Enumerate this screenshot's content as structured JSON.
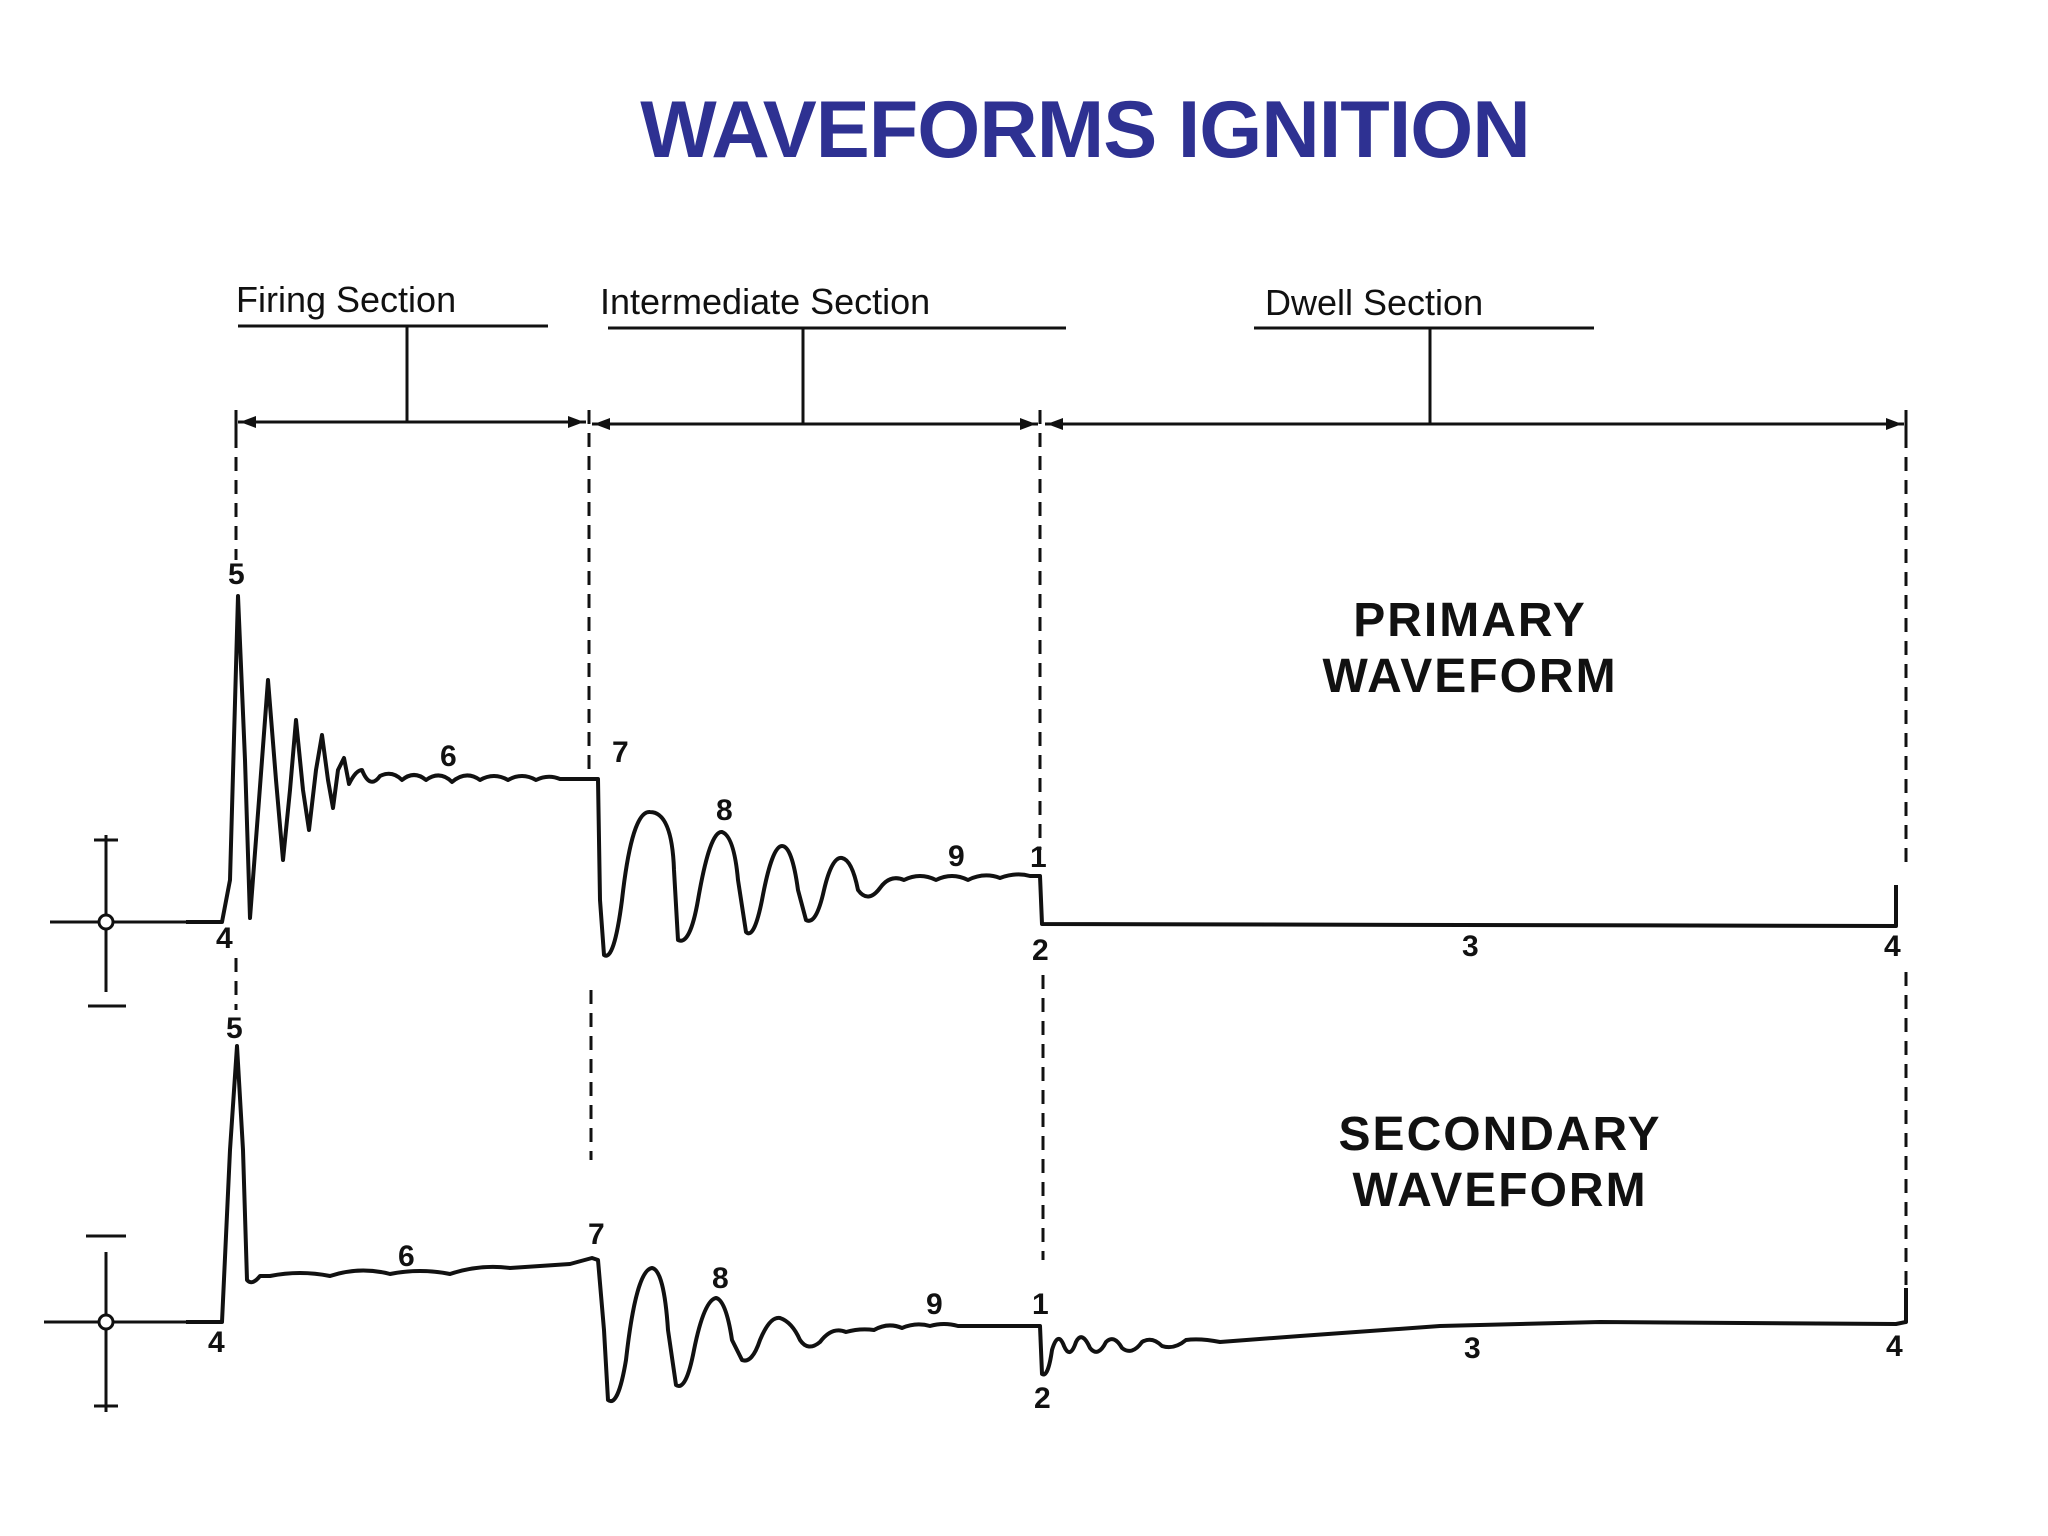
{
  "title": "WAVEFORMS IGNITION",
  "sections": {
    "firing": "Firing Section",
    "intermediate": "Intermediate Section",
    "dwell": "Dwell Section"
  },
  "primary": {
    "label_line1": "PRIMARY",
    "label_line2": "WAVEFORM",
    "points": [
      "1",
      "2",
      "3",
      "4",
      "4",
      "5",
      "6",
      "7",
      "8",
      "9"
    ]
  },
  "secondary": {
    "label_line1": "SECONDARY",
    "label_line2": "WAVEFORM",
    "points": [
      "1",
      "2",
      "3",
      "4",
      "4",
      "5",
      "6",
      "7",
      "8",
      "9"
    ]
  },
  "axis_marks": {
    "primary_top": "+",
    "primary_zero": "o",
    "primary_bottom": "—",
    "secondary_top": "—",
    "secondary_zero": "o",
    "secondary_bottom": "+"
  },
  "colors": {
    "title": "#2e3192",
    "ink": "#111111",
    "background": "#ffffff"
  }
}
